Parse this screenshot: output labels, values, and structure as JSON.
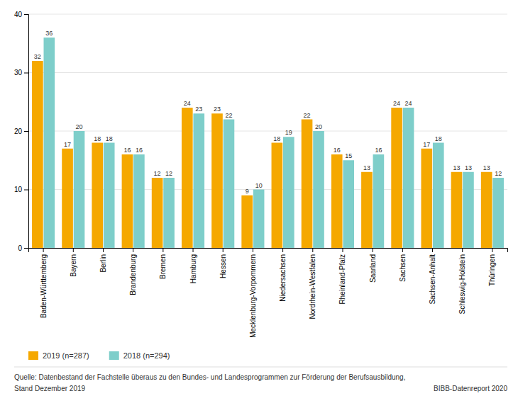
{
  "chart_data": {
    "type": "bar",
    "categories": [
      "Baden-Württemberg",
      "Bayern",
      "Berlin",
      "Brandenburg",
      "Bremen",
      "Hamburg",
      "Hessen",
      "Mecklenburg-Vorpommern",
      "Niedersachsen",
      "Nordrhein-Westfalen",
      "Rheinland-Pfalz",
      "Saarland",
      "Sachsen",
      "Sachsen-Anhalt",
      "Schleswig-Holstein",
      "Thüringen"
    ],
    "series": [
      {
        "name": "2019 (n=287)",
        "color": "#F5A800",
        "values": [
          32,
          17,
          18,
          16,
          12,
          24,
          23,
          9,
          18,
          22,
          16,
          13,
          24,
          17,
          13,
          13
        ]
      },
      {
        "name": "2018 (n=294)",
        "color": "#7ECECA",
        "values": [
          36,
          20,
          18,
          16,
          12,
          23,
          22,
          10,
          19,
          20,
          15,
          16,
          24,
          18,
          13,
          12
        ]
      }
    ],
    "ylim": [
      0,
      40
    ],
    "yticks": [
      0,
      10,
      20,
      30,
      40
    ],
    "grid": true,
    "data_labels": true,
    "legend": "bottom",
    "annotations": [
      "Quelle: Datenbestand der Fachstelle überaus zu den Bundes- und Landesprogrammen zur Förderung der Berufsausbildung,",
      "Stand Dezember 2019",
      "BIBB-Datenreport 2020"
    ]
  }
}
